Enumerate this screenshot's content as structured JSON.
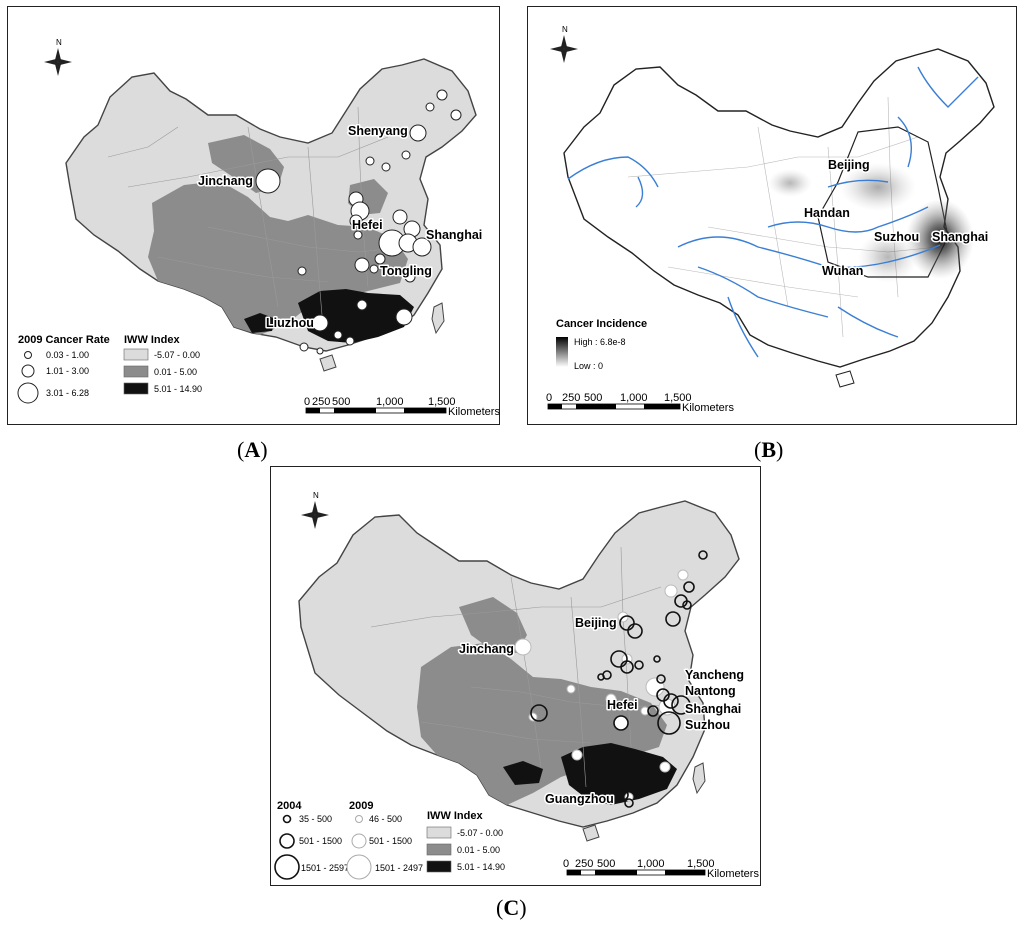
{
  "panels": {
    "a": {
      "caption": "A",
      "cities": {
        "shenyang": "Shenyang",
        "jinchang": "Jinchang",
        "hefei": "Hefei",
        "shanghai": "Shanghai",
        "tongling": "Tongling",
        "liuzhou": "Liuzhou"
      },
      "legend_rate": {
        "title": "2009 Cancer Rate",
        "items": [
          "0.03 - 1.00",
          "1.01 - 3.00",
          "3.01 - 6.28"
        ]
      },
      "legend_iww": {
        "title": "IWW Index",
        "items": [
          "-5.07 - 0.00",
          "0.01 - 5.00",
          "5.01 - 14.90"
        ]
      },
      "scale": {
        "ticks": [
          "0",
          "250",
          "500",
          "1,000",
          "1,500"
        ],
        "unit": "Kilometers"
      }
    },
    "b": {
      "caption": "B",
      "cities": {
        "beijing": "Beijing",
        "handan": "Handan",
        "suzhou": "Suzhou",
        "shanghai": "Shanghai",
        "wuhan": "Wuhan"
      },
      "legend": {
        "title": "Cancer Incidence",
        "high": "High : 6.8e-8",
        "low": "Low : 0"
      },
      "scale": {
        "ticks": [
          "0",
          "250",
          "500",
          "1,000",
          "1,500"
        ],
        "unit": "Kilometers"
      }
    },
    "c": {
      "caption": "C",
      "cities": {
        "beijing": "Beijing",
        "jinchang": "Jinchang",
        "yancheng": "Yancheng",
        "nantong": "Nantong",
        "hefei": "Hefei",
        "shanghai": "Shanghai",
        "suzhou": "Suzhou",
        "guangzhou": "Guangzhou"
      },
      "legend_2004": {
        "title": "2004",
        "items": [
          "35 - 500",
          "501 - 1500",
          "1501 - 2597"
        ]
      },
      "legend_2009": {
        "title": "2009",
        "items": [
          "46 - 500",
          "501 - 1500",
          "1501 - 2497"
        ]
      },
      "legend_iww": {
        "title": "IWW Index",
        "items": [
          "-5.07 - 0.00",
          "0.01 - 5.00",
          "5.01 - 14.90"
        ]
      },
      "scale": {
        "ticks": [
          "0",
          "250",
          "500",
          "1,000",
          "1,500"
        ],
        "unit": "Kilometers"
      }
    }
  },
  "north_label": "N",
  "colors": {
    "iww_low": "#dcdcdc",
    "iww_mid": "#8c8c8c",
    "iww_high": "#111111",
    "river": "#3a7fd5",
    "border": "#9a9a9a"
  }
}
